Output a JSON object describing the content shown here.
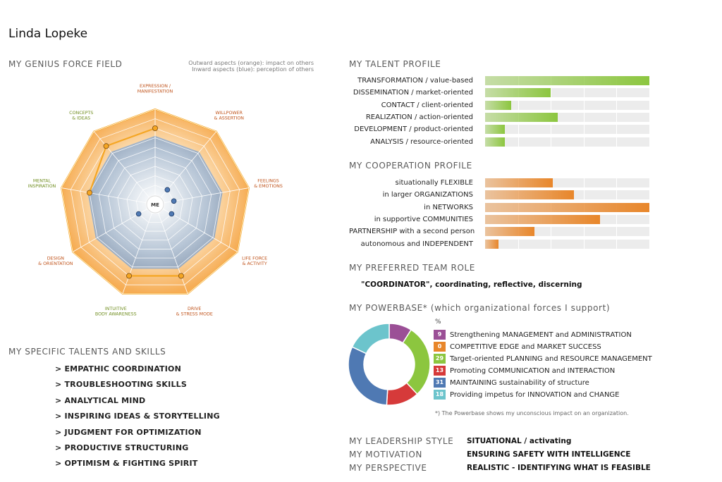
{
  "name": "Linda Lopeke",
  "genius": {
    "title": "MY GENIUS FORCE FIELD",
    "note_outward": "Outward aspects (orange): impact on others",
    "note_inward": "Inward aspects (blue): perception of others",
    "center_label": "ME",
    "colors": {
      "outward": "#f5a623",
      "inward": "#4f79b3"
    }
  },
  "talents_title": "MY SPECIFIC TALENTS AND SKILLS",
  "talents": [
    "> EMPATHIC COORDINATION",
    "> TROUBLESHOOTING SKILLS",
    "> ANALYTICAL MIND",
    "> INSPIRING IDEAS & STORYTELLING",
    "> JUDGMENT FOR OPTIMIZATION",
    "> PRODUCTIVE STRUCTURING",
    "> OPTIMISM & FIGHTING SPIRIT"
  ],
  "talent_profile": {
    "title": "MY TALENT PROFILE",
    "color": "#8cc63f"
  },
  "cooperation_profile": {
    "title": "MY COOPERATION PROFILE",
    "color": "#e8862a"
  },
  "team_role": {
    "title": "MY PREFERRED TEAM ROLE",
    "value": "\"COORDINATOR\", coordinating, reflective, discerning"
  },
  "powerbase": {
    "title": "MY POWERBASE* (which organizational forces I support)",
    "percent_label": "%",
    "footnote": "*) The Powerbase shows my unconscious impact on an organization."
  },
  "leadership": [
    {
      "key": "MY LEADERSHIP STYLE",
      "value": "SITUATIONAL / activating"
    },
    {
      "key": "MY MOTIVATION",
      "value": "ENSURING SAFETY WITH INTELLIGENCE"
    },
    {
      "key": "MY PERSPECTIVE",
      "value": "REALISTIC - IDENTIFYING WHAT IS FEASIBLE"
    }
  ],
  "chart_data": [
    {
      "type": "radar",
      "title": "MY GENIUS FORCE FIELD",
      "axes": [
        "EXPRESSION / MANIFESTATION",
        "WILLPOWER & ASSERTION",
        "FEELINGS & EMOTIONS",
        "LIFE FORCE & ACTIVITY",
        "DRIVE & STRESS MODE",
        "INTUITIVE BODY AWARENESS",
        "DESIGN & ORIENTATION",
        "MENTAL INSPIRATION",
        "CONCEPTS & IDEAS"
      ],
      "axis_colors": [
        "#c0541c",
        "#c0541c",
        "#c0541c",
        "#c0541c",
        "#c0541c",
        "#6f8d1e",
        "#c0541c",
        "#6f8d1e",
        "#6f8d1e"
      ],
      "rmax": 10,
      "series": [
        {
          "name": "Outward aspects (orange)",
          "values": [
            8,
            null,
            null,
            null,
            8,
            8,
            null,
            7,
            8
          ]
        },
        {
          "name": "Inward aspects (blue)",
          "values": [
            null,
            2,
            2,
            2,
            null,
            null,
            2,
            null,
            null
          ]
        }
      ]
    },
    {
      "type": "bar",
      "orientation": "horizontal",
      "title": "MY TALENT PROFILE",
      "categories": [
        "TRANSFORMATION / value-based",
        "DISSEMINATION / market-oriented",
        "CONTACT / client-oriented",
        "REALIZATION / action-oriented",
        "DEVELOPMENT / product-oriented",
        "ANALYSIS / resource-oriented"
      ],
      "values": [
        100,
        40,
        16,
        44,
        12,
        12
      ],
      "xlim": [
        0,
        100
      ]
    },
    {
      "type": "bar",
      "orientation": "horizontal",
      "title": "MY COOPERATION PROFILE",
      "categories": [
        "situationally FLEXIBLE",
        "in larger ORGANIZATIONS",
        "in NETWORKS",
        "in supportive COMMUNITIES",
        "PARTNERSHIP with a second person",
        "autonomous and INDEPENDENT"
      ],
      "values": [
        41,
        54,
        100,
        70,
        30,
        8
      ],
      "xlim": [
        0,
        100
      ]
    },
    {
      "type": "pie",
      "donut": true,
      "title": "MY POWERBASE*",
      "categories": [
        "Strengthening MANAGEMENT and ADMINISTRATION",
        "COMPETITIVE EDGE and MARKET SUCCESS",
        "Target-oriented PLANNING and RESOURCE MANAGEMENT",
        "Promoting COMMUNICATION and INTERACTION",
        "MAINTAINING sustainability of structure",
        "Providing impetus for INNOVATION and CHANGE"
      ],
      "values": [
        9,
        0,
        29,
        13,
        31,
        18
      ],
      "labels": [
        "9",
        "0",
        "29",
        "13",
        "31",
        "18"
      ],
      "colors": [
        "#9b4f96",
        "#e8862a",
        "#8cc63f",
        "#d63a3a",
        "#4f79b3",
        "#6cc4cc"
      ]
    }
  ]
}
